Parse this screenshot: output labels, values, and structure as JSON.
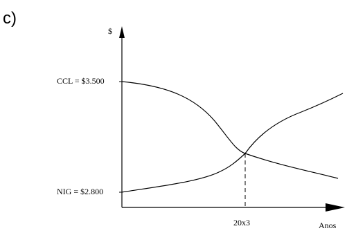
{
  "panel_label": "c)",
  "chart_data": {
    "type": "line",
    "ylabel": "$",
    "xlabel": "Anos",
    "series": [
      {
        "label": "CCL = $3.500",
        "y_label_value": 3500,
        "shape": "decreasing sigmoid"
      },
      {
        "label": "NIG = $2.800",
        "y_label_value": 2800,
        "shape": "increasing sigmoid"
      }
    ],
    "intersection": {
      "x_label": "20x3"
    },
    "grid": false,
    "legend": "none",
    "axis_ticks_numeric": false
  }
}
